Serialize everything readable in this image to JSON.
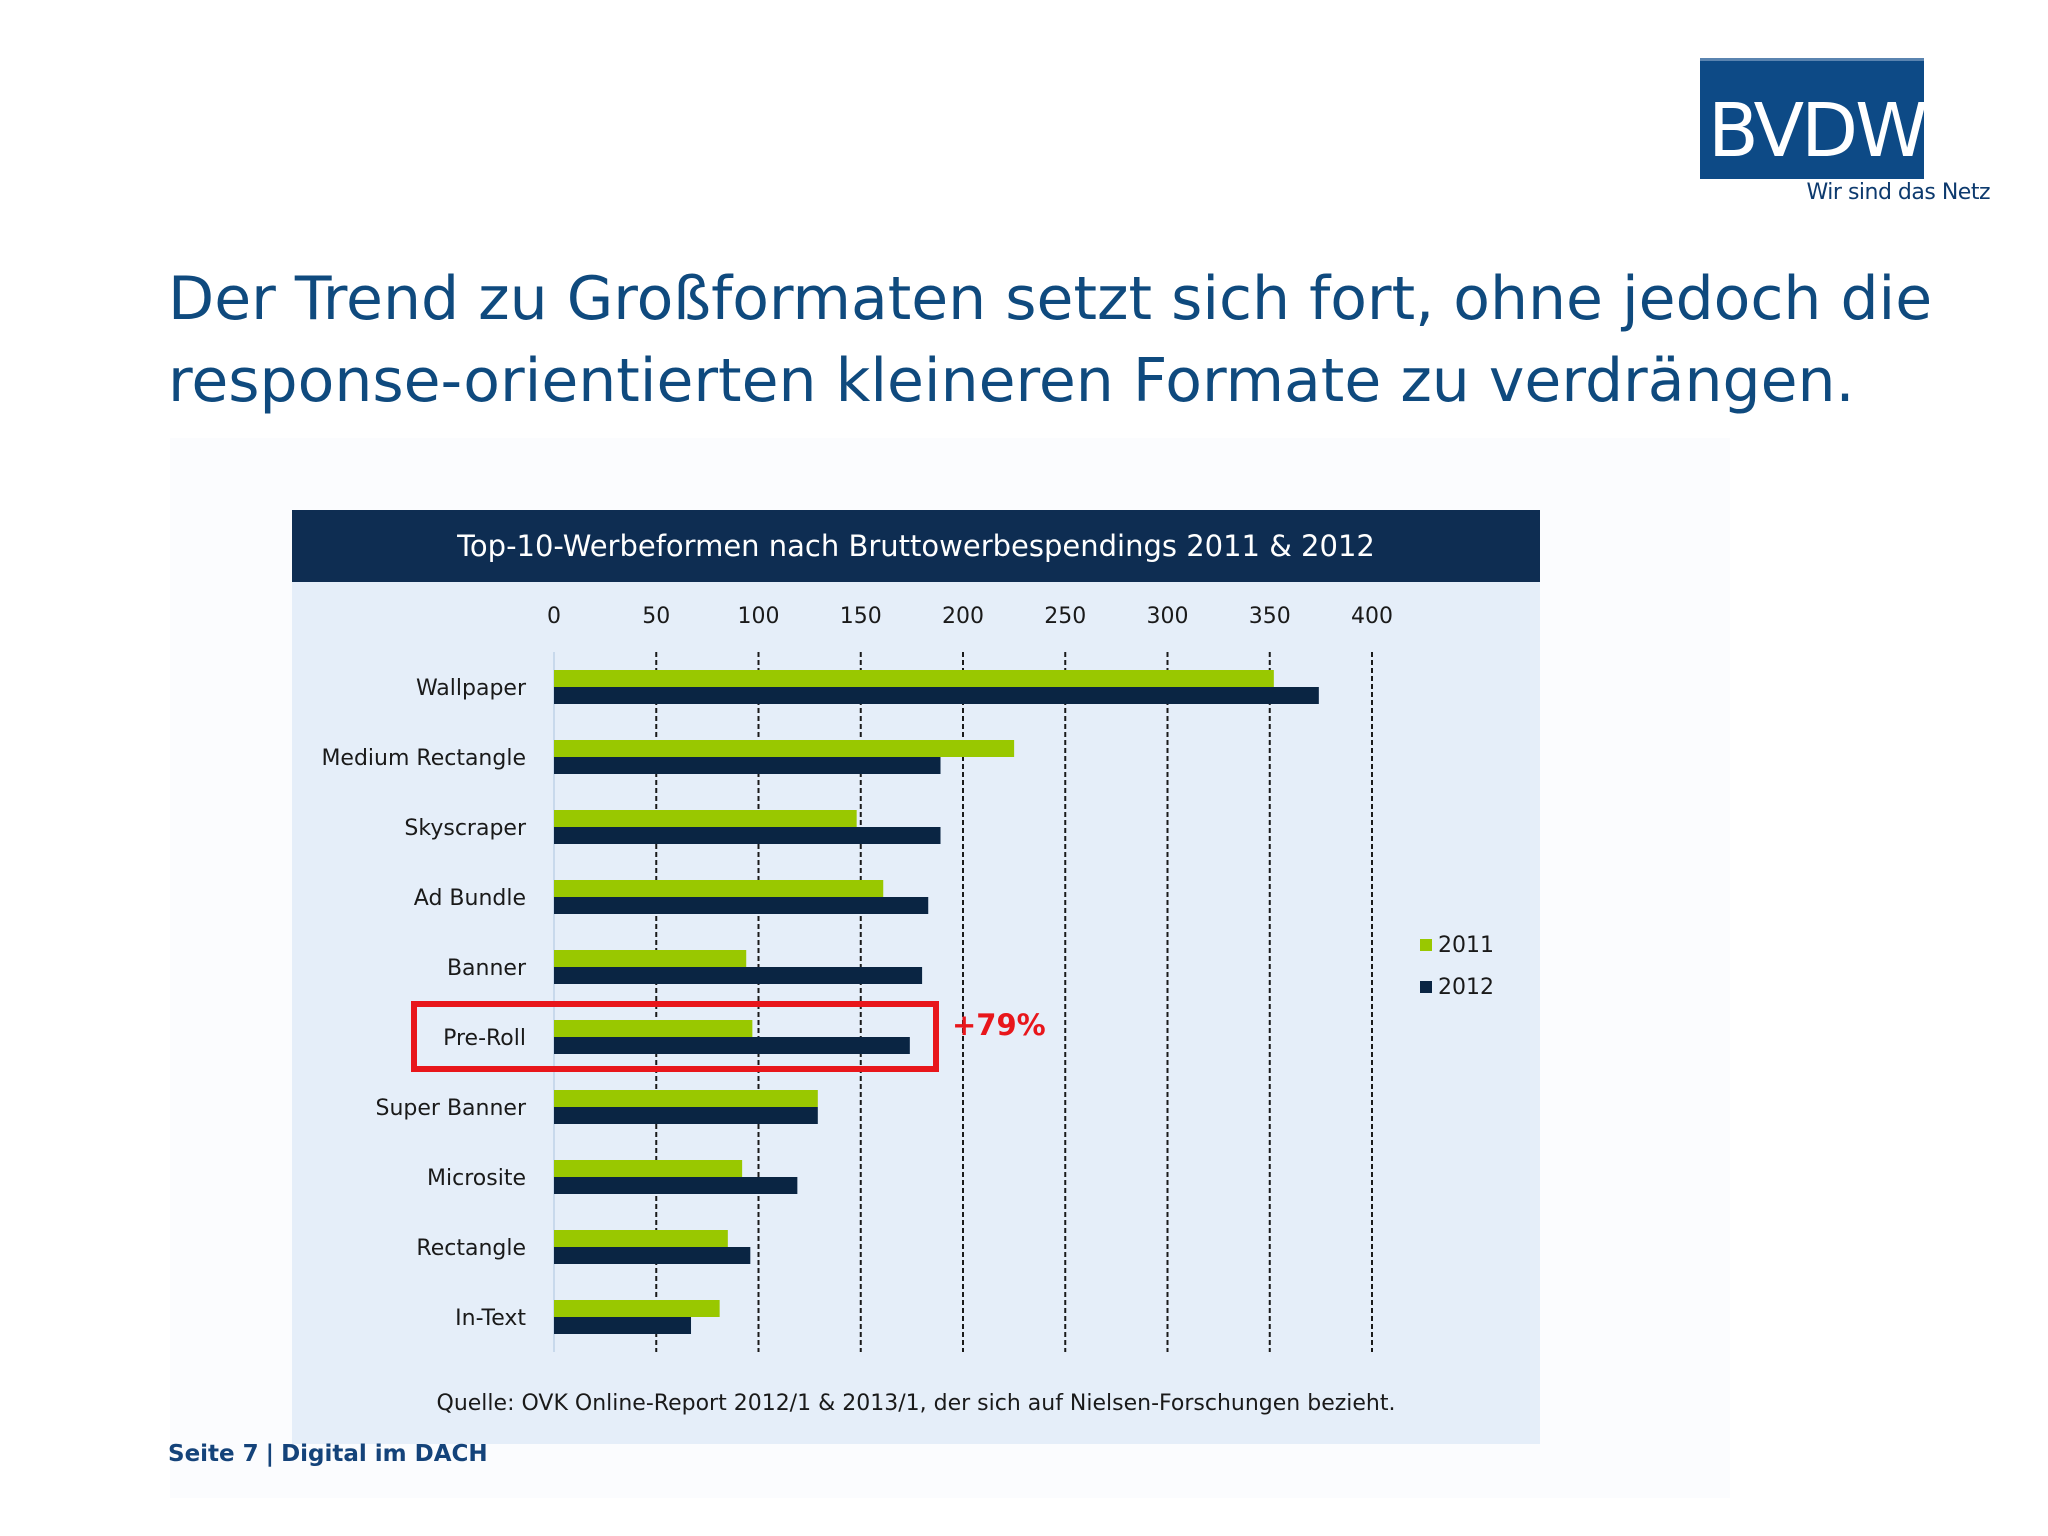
{
  "logo": {
    "name": "BVDW",
    "tagline": "Wir sind das Netz"
  },
  "headline": {
    "line1": "Der Trend zu Großformaten setzt sich fort, ohne jedoch die",
    "line2": "response-orientierten kleineren Formate zu verdrängen."
  },
  "footer": {
    "page": "Seite 7",
    "separator": "|",
    "section": "Digital im DACH"
  },
  "colors": {
    "navy": "#0e2d52",
    "green": "#99c800",
    "dark_bar": "#0a2543",
    "panel": "#e5eef9",
    "highlight": "#e8161b"
  },
  "chart_data": {
    "type": "bar",
    "orientation": "horizontal",
    "title": "Top-10-Werbeformen nach Bruttowerbespendings 2011 & 2012",
    "categories": [
      "Wallpaper",
      "Medium Rectangle",
      "Skyscraper",
      "Ad Bundle",
      "Banner",
      "Pre-Roll",
      "Super Banner",
      "Microsite",
      "Rectangle",
      "In-Text"
    ],
    "series": [
      {
        "name": "2011",
        "color": "#99c800",
        "values": [
          352,
          225,
          148,
          161,
          94,
          97,
          129,
          92,
          85,
          81
        ]
      },
      {
        "name": "2012",
        "color": "#0a2543",
        "values": [
          374,
          189,
          189,
          183,
          180,
          174,
          129,
          119,
          96,
          67
        ]
      }
    ],
    "xlim": [
      0,
      400
    ],
    "xticks": [
      0,
      50,
      100,
      150,
      200,
      250,
      300,
      350,
      400
    ],
    "xtick_position": "top",
    "grid": "vertical dashed",
    "legend": "right",
    "annotation": {
      "category": "Pre-Roll",
      "text": "+79%",
      "highlight_box": true
    },
    "source": "Quelle: OVK Online-Report 2012/1 & 2013/1, der sich auf Nielsen-Forschungen bezieht."
  }
}
